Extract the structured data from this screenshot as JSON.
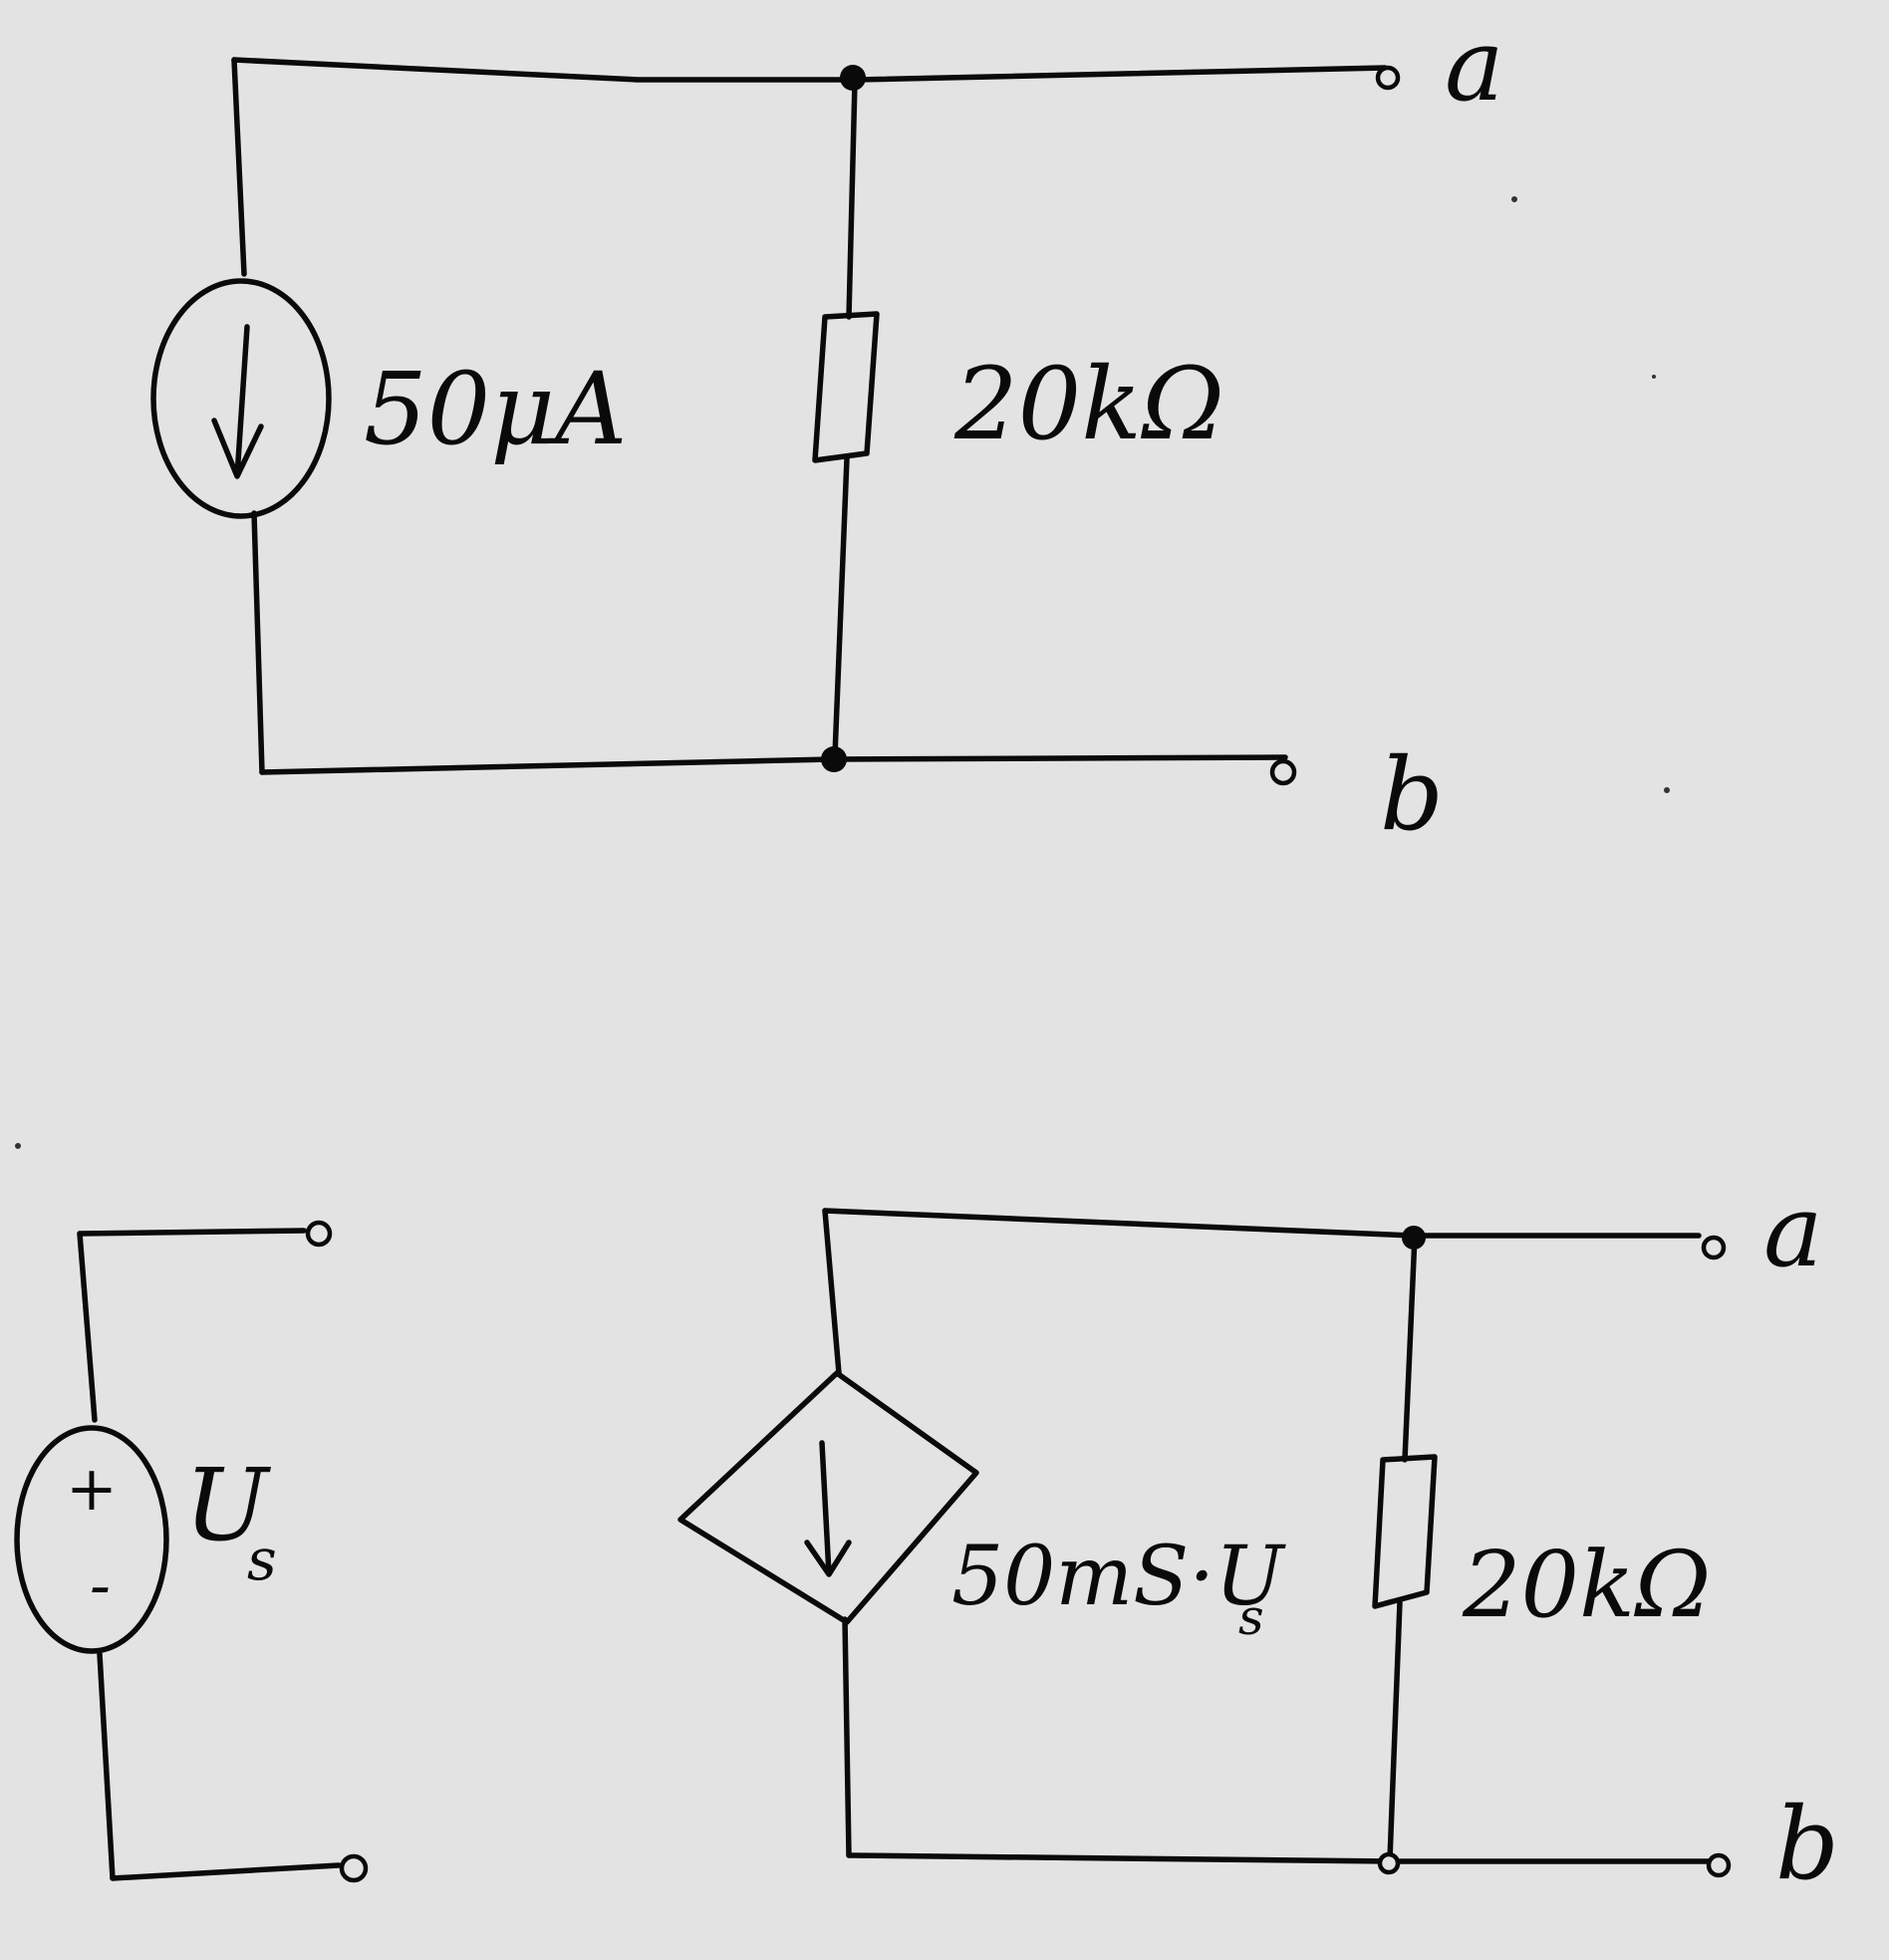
{
  "circuit1": {
    "current_source_label": "50μA",
    "resistor_label": "20kΩ",
    "terminal_a": "a",
    "terminal_b": "b"
  },
  "circuit2": {
    "vs_plus": "+",
    "vs_minus": "-",
    "vs_name": "U",
    "vs_sub": "s"
  },
  "circuit3": {
    "dep_label_main": "50mS·U",
    "dep_label_sub": "s",
    "resistor_label": "20kΩ",
    "terminal_a": "a",
    "terminal_b": "b"
  }
}
